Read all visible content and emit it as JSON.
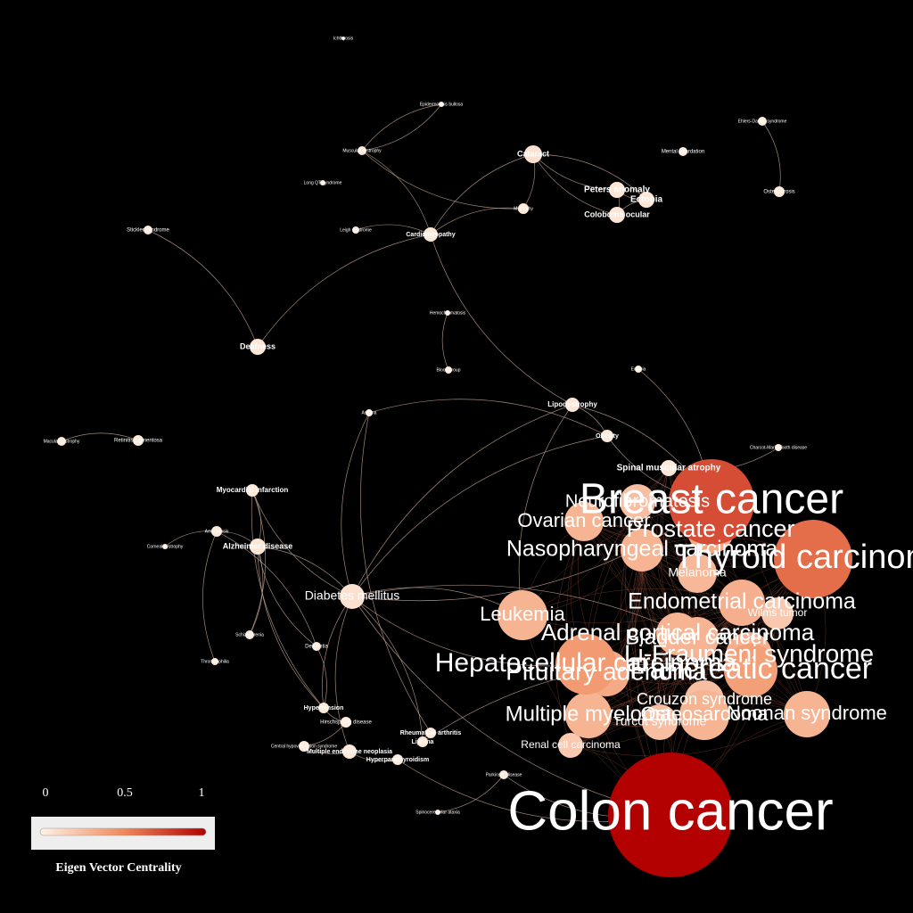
{
  "colors": {
    "background": "#000000",
    "edge": "#c9a99a",
    "scale_low": "#fff2e6",
    "scale_mid": "#f08a5c",
    "scale_high": "#b30000",
    "legend_box": "#eeeeee"
  },
  "legend": {
    "tick_0": "0",
    "tick_mid": "0.5",
    "tick_1": "1",
    "title": "Eigen Vector Centrality"
  },
  "nodes": [
    {
      "id": "ichthyosis",
      "label": "Ichthyosis",
      "c": 0.02
    },
    {
      "id": "epidermolysis",
      "label": "Epidermolysis bullosa",
      "c": 0.02
    },
    {
      "id": "muscular-dystrophy",
      "label": "Muscular dystrophy",
      "c": 0.04
    },
    {
      "id": "cataract",
      "label": "Cataract",
      "c": 0.08
    },
    {
      "id": "mental-retardation",
      "label": "Mental retardation",
      "c": 0.03
    },
    {
      "id": "ehlers-danlos",
      "label": "Ehlers-Danlos syndrome",
      "c": 0.02
    },
    {
      "id": "long-qt",
      "label": "Long QT syndrome",
      "c": 0.02
    },
    {
      "id": "peters-anomaly",
      "label": "Peters anomaly",
      "c": 0.06
    },
    {
      "id": "ectopia",
      "label": "Ectopia",
      "c": 0.06
    },
    {
      "id": "myopathy",
      "label": "Myopathy",
      "c": 0.04
    },
    {
      "id": "coloboma",
      "label": "Coloboma ocular",
      "c": 0.06
    },
    {
      "id": "osteoporosis",
      "label": "Osteoporosis",
      "c": 0.04
    },
    {
      "id": "stickler",
      "label": "Stickler syndrome",
      "c": 0.03
    },
    {
      "id": "leigh",
      "label": "Leigh syndrome",
      "c": 0.03
    },
    {
      "id": "cardiomyopathy",
      "label": "Cardiomyopathy",
      "c": 0.05
    },
    {
      "id": "hemochromatosis",
      "label": "Hemochromatosis",
      "c": 0.02
    },
    {
      "id": "deafness",
      "label": "Deafness",
      "c": 0.06
    },
    {
      "id": "blood-group",
      "label": "Blood group",
      "c": 0.02
    },
    {
      "id": "ectopia2",
      "label": "Ectopia",
      "c": 0.02
    },
    {
      "id": "lipodystrophy",
      "label": "Lipodystrophy",
      "c": 0.06
    },
    {
      "id": "asthma",
      "label": "Asthma",
      "c": 0.02
    },
    {
      "id": "obesity",
      "label": "Obesity",
      "c": 0.05
    },
    {
      "id": "macular",
      "label": "Macular dystrophy",
      "c": 0.03
    },
    {
      "id": "retinitis",
      "label": "Retinitis pigmentosa",
      "c": 0.04
    },
    {
      "id": "charcot",
      "label": "Charcot-Marie-Tooth disease",
      "c": 0.02
    },
    {
      "id": "spinal-muscular",
      "label": "Spinal muscular atrophy",
      "c": 0.05
    },
    {
      "id": "myocardial",
      "label": "Myocardial infarction",
      "c": 0.05
    },
    {
      "id": "breast-cancer",
      "label": "Breast cancer",
      "c": 0.72
    },
    {
      "id": "neurofibromatosis",
      "label": "Neurofibromatosis",
      "c": 0.25
    },
    {
      "id": "ovarian-cancer",
      "label": "Ovarian cancer",
      "c": 0.3
    },
    {
      "id": "prostate-cancer",
      "label": "Prostate cancer",
      "c": 0.35
    },
    {
      "id": "amyloidosis",
      "label": "Amyloidosis",
      "c": 0.04
    },
    {
      "id": "alzheimer",
      "label": "Alzheimer disease",
      "c": 0.06
    },
    {
      "id": "corneal",
      "label": "Corneal dystrophy",
      "c": 0.02
    },
    {
      "id": "nasopharyngeal",
      "label": "Nasopharyngeal carcinoma",
      "c": 0.3
    },
    {
      "id": "thyroid",
      "label": "Thyroid carcinoma",
      "c": 0.6
    },
    {
      "id": "melanoma",
      "label": "Melanoma",
      "c": 0.28
    },
    {
      "id": "diabetes",
      "label": "Diabetes mellitus",
      "c": 0.08
    },
    {
      "id": "endometrial",
      "label": "Endometrial carcinoma",
      "c": 0.32
    },
    {
      "id": "wilms",
      "label": "Wilms tumor",
      "c": 0.2
    },
    {
      "id": "leukemia",
      "label": "Leukemia",
      "c": 0.3
    },
    {
      "id": "adrenal",
      "label": "Adrenal cortical carcinoma",
      "c": 0.3
    },
    {
      "id": "bladder",
      "label": "Bladder cancer",
      "c": 0.3
    },
    {
      "id": "schizophrenia",
      "label": "Schizophrenia",
      "c": 0.03
    },
    {
      "id": "li-fraumeni",
      "label": "Li-Fraumeni syndrome",
      "c": 0.32
    },
    {
      "id": "hepatocellular",
      "label": "Hepatocellular carcinoma",
      "c": 0.42
    },
    {
      "id": "pancreatic",
      "label": "Pancreatic cancer",
      "c": 0.4
    },
    {
      "id": "pituitary",
      "label": "Pituitary adenoma",
      "c": 0.35
    },
    {
      "id": "dementia",
      "label": "Dementia",
      "c": 0.03
    },
    {
      "id": "thrombophilia",
      "label": "Thrombophilia",
      "c": 0.03
    },
    {
      "id": "crouzon",
      "label": "Crouzon syndrome",
      "c": 0.25
    },
    {
      "id": "hypertension",
      "label": "Hypertension",
      "c": 0.05
    },
    {
      "id": "multiple-myeloma",
      "label": "Multiple myeloma",
      "c": 0.3
    },
    {
      "id": "osteosarcoma",
      "label": "Osteosarcoma",
      "c": 0.3
    },
    {
      "id": "noonan",
      "label": "Noonan syndrome",
      "c": 0.3
    },
    {
      "id": "turcot",
      "label": "Turcot syndrome",
      "c": 0.25
    },
    {
      "id": "hirschsprung",
      "label": "Hirschsprung disease",
      "c": 0.03
    },
    {
      "id": "rheumatoid",
      "label": "Rheumatoid arthritis",
      "c": 0.05
    },
    {
      "id": "lipoma",
      "label": "Lipoma",
      "c": 0.05
    },
    {
      "id": "renal-cell",
      "label": "Renal cell carcinoma",
      "c": 0.2
    },
    {
      "id": "central-hypoventilation",
      "label": "Central hypoventilation syndrome",
      "c": 0.03
    },
    {
      "id": "men",
      "label": "Multiple endocrine neoplasia",
      "c": 0.05
    },
    {
      "id": "hyperparathyroidism",
      "label": "Hyperparathyroidism",
      "c": 0.04
    },
    {
      "id": "parkinson",
      "label": "Parkinson disease",
      "c": 0.04
    },
    {
      "id": "colon-cancer",
      "label": "Colon cancer",
      "c": 1.0
    },
    {
      "id": "spinocerebellar",
      "label": "Spinocerebellar ataxia",
      "c": 0.02
    }
  ]
}
